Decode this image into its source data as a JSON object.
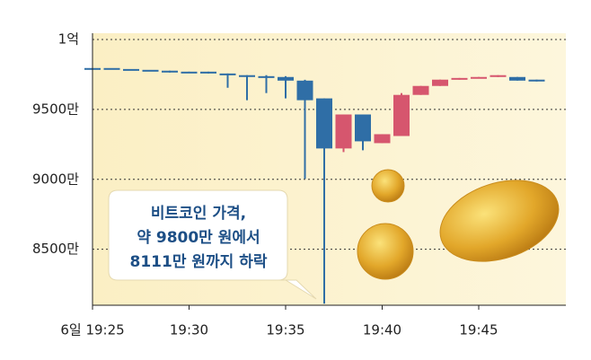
{
  "chart_data": {
    "type": "candlestick",
    "categories": [
      "6일 19:25",
      null,
      null,
      null,
      null,
      "19:30",
      null,
      null,
      null,
      null,
      "19:35",
      null,
      null,
      null,
      null,
      "19:40",
      null,
      null,
      null,
      null,
      "19:45",
      null,
      null,
      null
    ],
    "open": [
      9796,
      9796,
      9789,
      9783,
      9777,
      9770,
      9770,
      9757,
      9745,
      9738,
      9732,
      9706,
      9579,
      9221,
      9464,
      9259,
      9310,
      9604,
      9668,
      9713,
      9725,
      9732,
      9732,
      9713
    ],
    "high": [
      9796,
      9796,
      9789,
      9783,
      9777,
      9770,
      9770,
      9757,
      9745,
      9745,
      9738,
      9712,
      9579,
      9464,
      9464,
      9323,
      9617,
      9668,
      9713,
      9725,
      9732,
      9745,
      9732,
      9713
    ],
    "low": [
      9796,
      9796,
      9789,
      9783,
      9764,
      9764,
      9757,
      9655,
      9566,
      9617,
      9579,
      9004,
      8111,
      9195,
      9208,
      9259,
      9310,
      9604,
      9668,
      9713,
      9725,
      9732,
      9706,
      9700
    ],
    "close": [
      9796,
      9796,
      9789,
      9783,
      9764,
      9764,
      9757,
      9745,
      9732,
      9725,
      9706,
      9566,
      9221,
      9464,
      9272,
      9323,
      9604,
      9668,
      9713,
      9725,
      9732,
      9745,
      9706,
      9700
    ],
    "up_color": "#d6566e",
    "down_color": "#2f6ea6",
    "ylim": [
      8100,
      10045
    ],
    "yticks": [
      {
        "value": 8500,
        "label": "8500만"
      },
      {
        "value": 9000,
        "label": "9000만"
      },
      {
        "value": 9500,
        "label": "9500만"
      },
      {
        "value": 10000,
        "label": "1억"
      }
    ],
    "grid": true,
    "annotation": [
      "비트코인 가격,",
      "약 9800만 원에서",
      "8111만 원까지 하락"
    ]
  }
}
